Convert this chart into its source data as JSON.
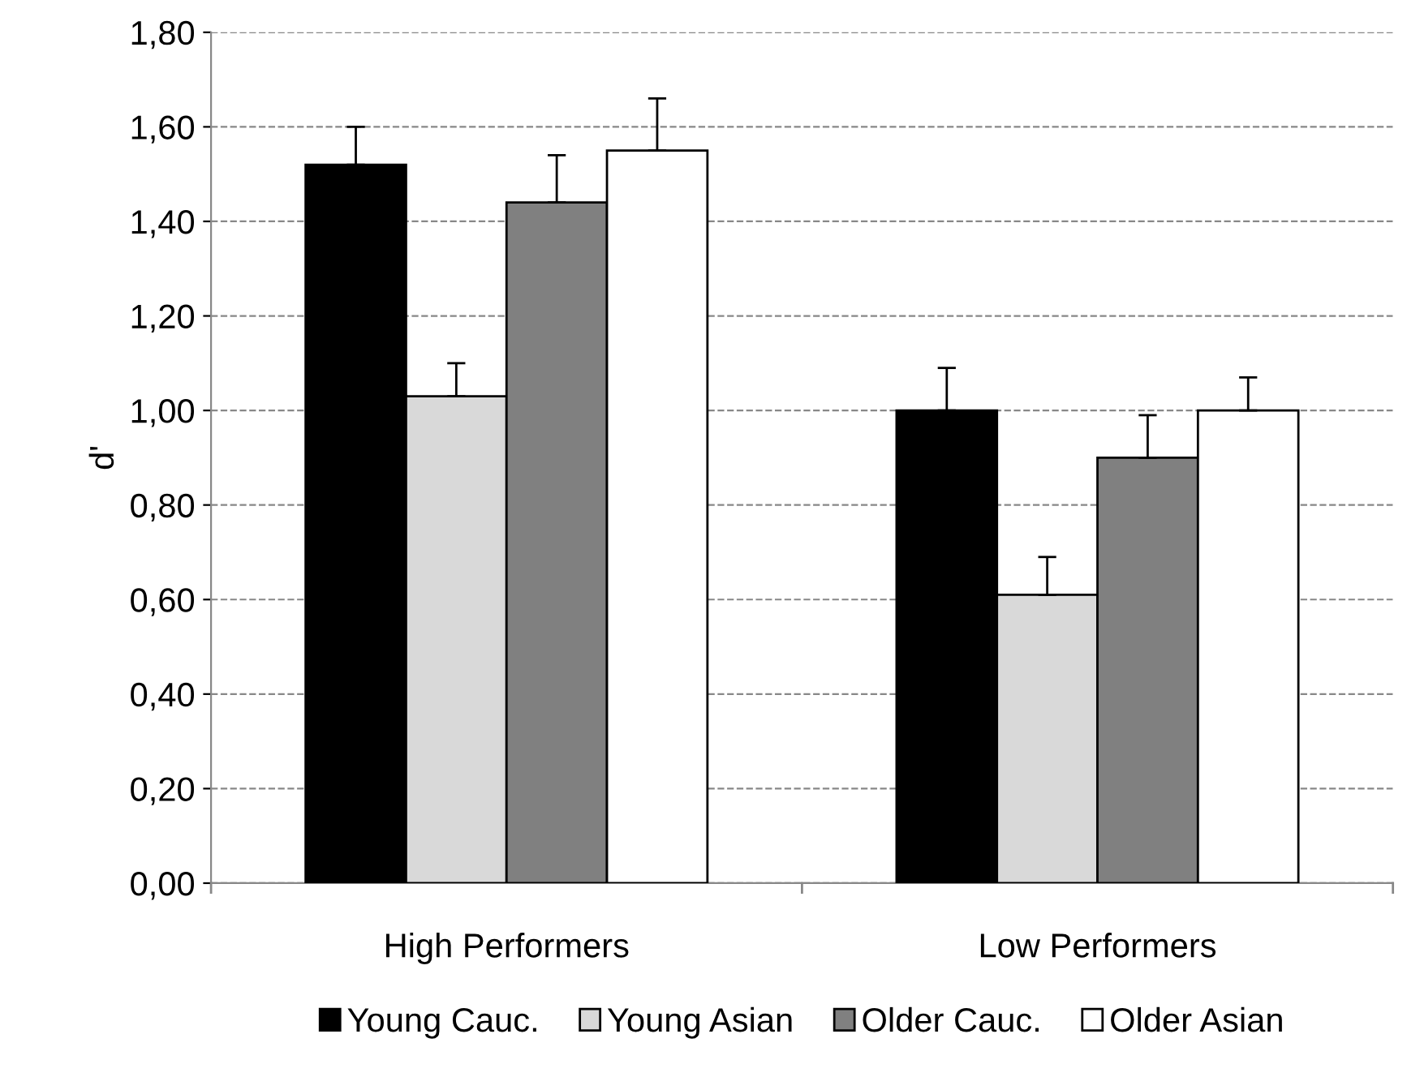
{
  "chart_data": {
    "type": "bar",
    "ylabel": "d'",
    "categories": [
      "High Performers",
      "Low Performers"
    ],
    "series": [
      {
        "name": "Young Cauc.",
        "color": "#000000",
        "values": [
          1.52,
          1.0
        ],
        "errors": [
          [
            1.52,
            1.6
          ],
          [
            1.0,
            1.09
          ]
        ]
      },
      {
        "name": "Young Asian",
        "color": "#d9d9d9",
        "values": [
          1.03,
          0.61
        ],
        "errors": [
          [
            1.03,
            1.1
          ],
          [
            0.61,
            0.69
          ]
        ]
      },
      {
        "name": "Older Cauc.",
        "color": "#808080",
        "values": [
          1.44,
          0.9
        ],
        "errors": [
          [
            1.44,
            1.54
          ],
          [
            0.9,
            0.99
          ]
        ]
      },
      {
        "name": "Older Asian",
        "color": "#ffffff",
        "values": [
          1.55,
          1.0
        ],
        "errors": [
          [
            1.55,
            1.66
          ],
          [
            1.0,
            1.07
          ]
        ]
      }
    ],
    "ylim": [
      0,
      1.8
    ],
    "yticks": [
      {
        "value": 0,
        "label": "0,00"
      },
      {
        "value": 0.2,
        "label": "0,20"
      },
      {
        "value": 0.4,
        "label": "0,40"
      },
      {
        "value": 0.6,
        "label": "0,60"
      },
      {
        "value": 0.8,
        "label": "0,80"
      },
      {
        "value": 1.0,
        "label": "1,00"
      },
      {
        "value": 1.2,
        "label": "1,20"
      },
      {
        "value": 1.4,
        "label": "1,40"
      },
      {
        "value": 1.6,
        "label": "1,60"
      },
      {
        "value": 1.8,
        "label": "1,80"
      }
    ],
    "grid": "y",
    "legend": "bottom"
  }
}
